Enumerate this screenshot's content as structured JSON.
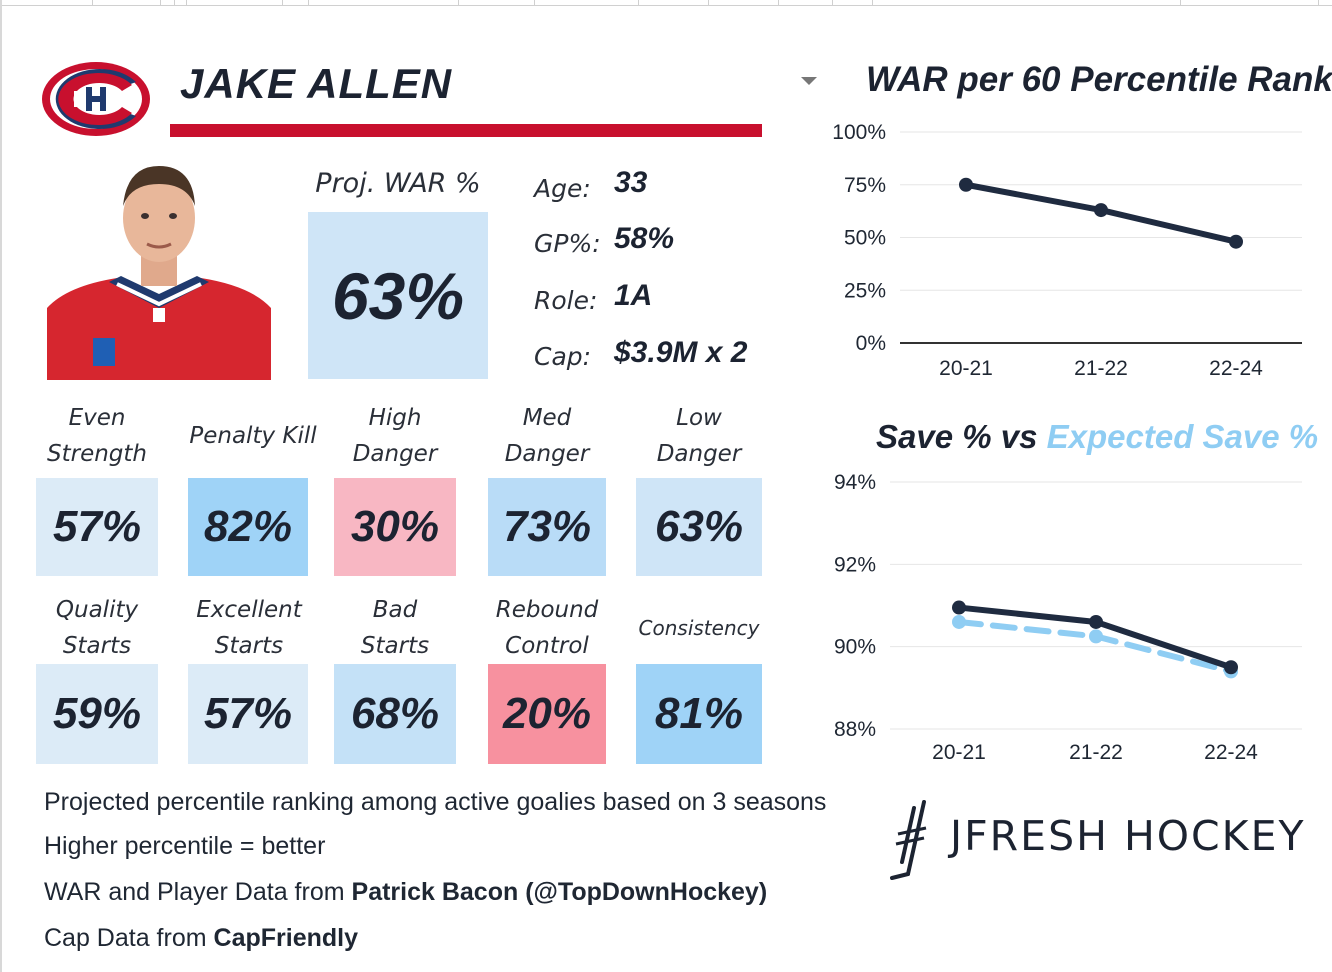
{
  "player": {
    "name": "JAKE ALLEN",
    "team_logo": "montreal-canadiens-logo",
    "photo": "player-headshot",
    "proj_war_label": "Proj. WAR %",
    "proj_war_value": "63%",
    "info": [
      {
        "label": "Age:",
        "value": "33"
      },
      {
        "label": "GP%:",
        "value": "58%"
      },
      {
        "label": "Role:",
        "value": "1A"
      },
      {
        "label": "Cap:",
        "value": "$3.9M x 2"
      }
    ]
  },
  "metrics_row1": [
    {
      "label_lines": [
        "Even",
        "Strength"
      ],
      "value": "57%",
      "color": "#dcebf7"
    },
    {
      "label_lines": [
        "Penalty Kill"
      ],
      "value": "82%",
      "color": "#9fd3f7"
    },
    {
      "label_lines": [
        "High",
        "Danger"
      ],
      "value": "30%",
      "color": "#f8b7c3"
    },
    {
      "label_lines": [
        "Med",
        "Danger"
      ],
      "value": "73%",
      "color": "#b9dcf7"
    },
    {
      "label_lines": [
        "Low",
        "Danger"
      ],
      "value": "63%",
      "color": "#cfe5f7"
    }
  ],
  "metrics_row2": [
    {
      "label_lines": [
        "Quality",
        "Starts"
      ],
      "value": "59%",
      "color": "#dcebf7"
    },
    {
      "label_lines": [
        "Excellent",
        "Starts"
      ],
      "value": "57%",
      "color": "#dcebf7"
    },
    {
      "label_lines": [
        "Bad",
        "Starts"
      ],
      "value": "68%",
      "color": "#c4e1f7"
    },
    {
      "label_lines": [
        "Rebound",
        "Control"
      ],
      "value": "20%",
      "color": "#f7919f"
    },
    {
      "label_lines": [
        "Consistency"
      ],
      "value": "81%",
      "color": "#9fd3f7"
    }
  ],
  "footnotes": [
    {
      "text": "Projected percentile ranking among active goalies based on 3 seasons",
      "bold": ""
    },
    {
      "text": "Higher percentile = better",
      "bold": ""
    },
    {
      "text": "WAR and Player Data from ",
      "bold": "Patrick Bacon (@TopDownHockey)"
    },
    {
      "text": "Cap Data from ",
      "bold": "CapFriendly"
    }
  ],
  "brand": {
    "name": "JFRESH HOCKEY",
    "icon": "jfresh-stick-icon"
  },
  "colors": {
    "accent_red": "#c8102e",
    "navy": "#1f2b40",
    "light_blue": "#8fcdf3"
  },
  "chart_data": [
    {
      "type": "line",
      "title": "WAR per 60 Percentile Rank",
      "categories": [
        "20-21",
        "21-22",
        "22-24"
      ],
      "series": [
        {
          "values": [
            75,
            63,
            48
          ],
          "color": "#1f2b40"
        }
      ],
      "yticks": [
        "100%",
        "75%",
        "50%",
        "25%",
        "0%"
      ],
      "ylim": [
        0,
        100
      ],
      "grid": true
    },
    {
      "type": "line",
      "title": "Save % vs Expected Save %",
      "title_parts": [
        {
          "text": "Save % vs ",
          "color": "#1c2331"
        },
        {
          "text": "Expected Save %",
          "color": "#8fcdf3"
        }
      ],
      "categories": [
        "20-21",
        "21-22",
        "22-24"
      ],
      "series": [
        {
          "name": "Save %",
          "values": [
            90.95,
            90.6,
            89.5
          ],
          "color": "#1f2b40",
          "style": "solid"
        },
        {
          "name": "Expected Save %",
          "values": [
            90.6,
            90.25,
            89.4
          ],
          "color": "#8fcdf3",
          "style": "dashed"
        }
      ],
      "yticks": [
        "94%",
        "92%",
        "90%",
        "88%"
      ],
      "ylim": [
        88,
        94
      ],
      "grid": true
    }
  ]
}
